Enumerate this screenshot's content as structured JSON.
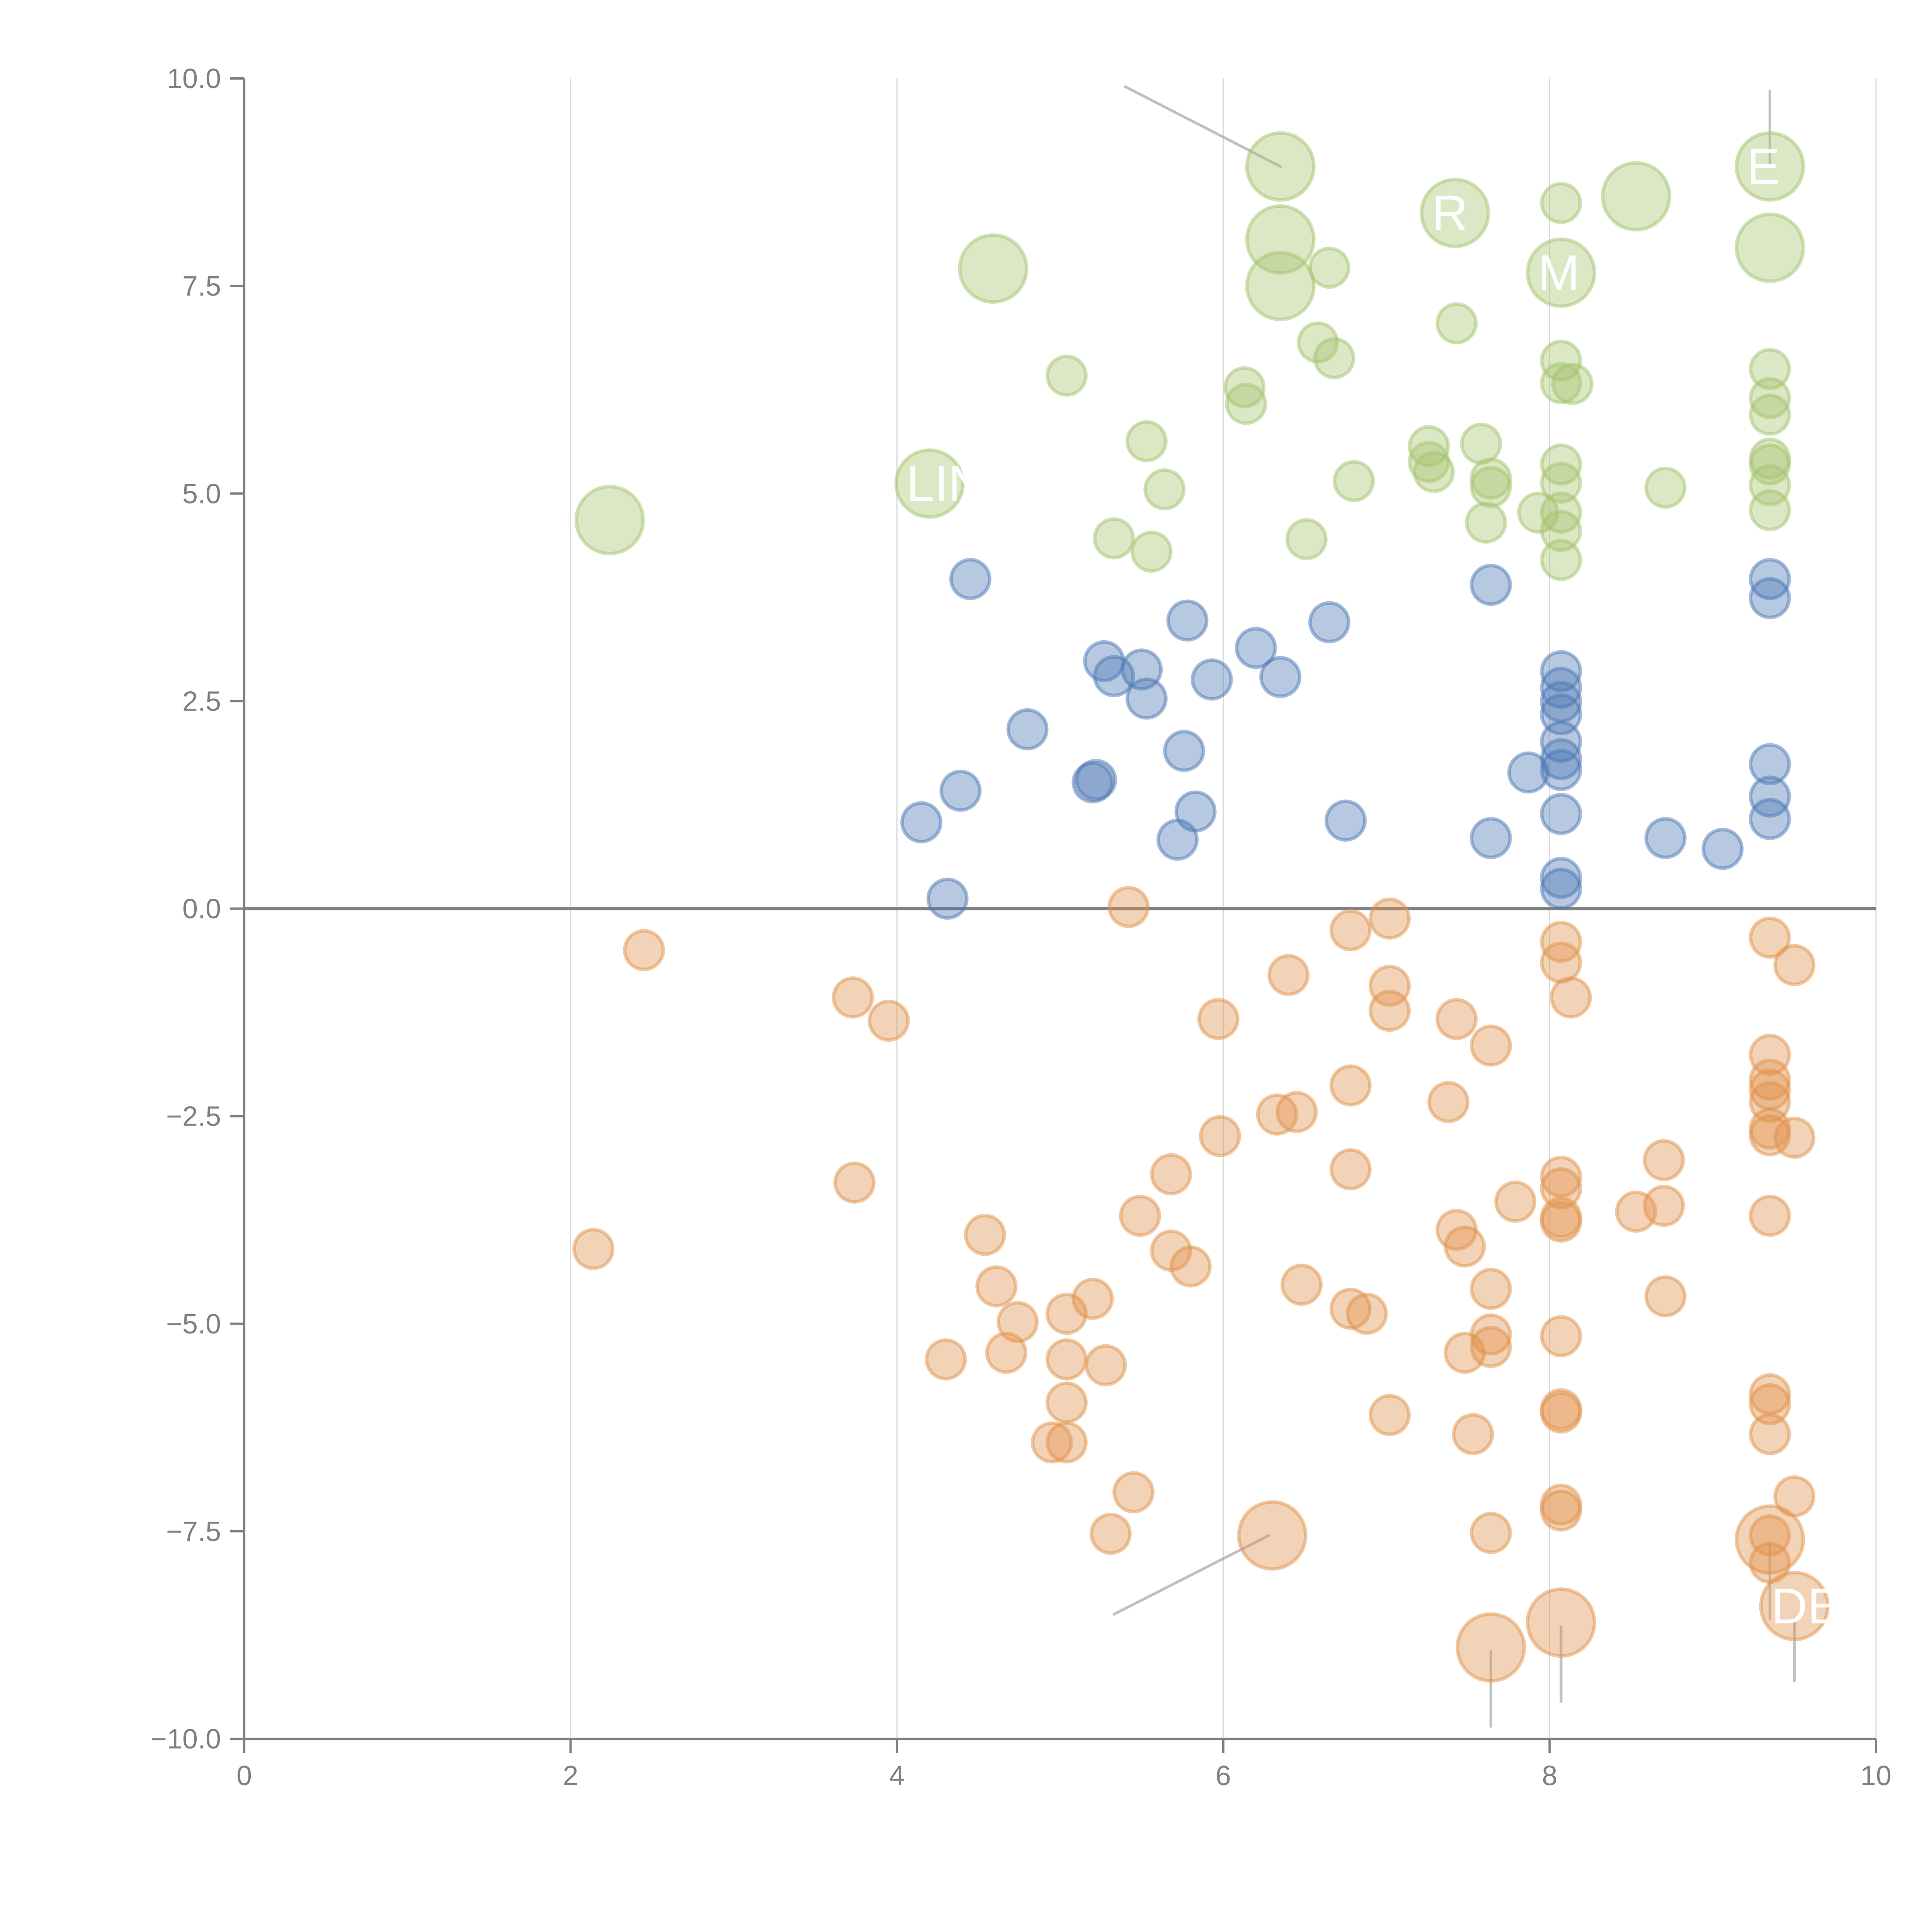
{
  "chart_data": {
    "type": "scatter",
    "title": "",
    "xlabel": "",
    "ylabel": "",
    "xlim": [
      0,
      10
    ],
    "ylim": [
      -10,
      10
    ],
    "grid": "vertical lines at x ticks",
    "legend": "none",
    "x_ticks": [
      "0",
      "2",
      "4",
      "6",
      "8",
      "10"
    ],
    "x_tick_values": [
      0,
      2,
      4,
      6,
      8,
      10
    ],
    "y_ticks": [
      "10.0",
      "7.5",
      "5.0",
      "2.5",
      "0.0",
      "−2.5",
      "−5.0",
      "−7.5",
      "−10.0"
    ],
    "y_tick_values": [
      10,
      7.5,
      5,
      2.5,
      0,
      -2.5,
      -5,
      -7.5,
      -10
    ],
    "zero_line": 0,
    "series": [
      {
        "name": "green",
        "color": "#a4c46e",
        "points": [
          {
            "x": 2.24,
            "y": 4.68,
            "size": 3
          },
          {
            "x": 4.2,
            "y": 5.12,
            "size": 3,
            "label": "LIN"
          },
          {
            "x": 4.59,
            "y": 7.71,
            "size": 3
          },
          {
            "x": 6.35,
            "y": 8.94,
            "size": 3
          },
          {
            "x": 6.35,
            "y": 8.06,
            "size": 3
          },
          {
            "x": 6.35,
            "y": 7.5,
            "size": 3
          },
          {
            "x": 7.42,
            "y": 8.38,
            "size": 3,
            "label": "R"
          },
          {
            "x": 8.07,
            "y": 7.66,
            "size": 3,
            "label": "M"
          },
          {
            "x": 8.53,
            "y": 8.58,
            "size": 3
          },
          {
            "x": 9.35,
            "y": 8.94,
            "size": 3,
            "label": "E"
          },
          {
            "x": 9.35,
            "y": 7.96,
            "size": 3
          },
          {
            "x": 5.04,
            "y": 6.42,
            "size": 1
          },
          {
            "x": 5.53,
            "y": 5.63,
            "size": 1
          },
          {
            "x": 5.64,
            "y": 5.05,
            "size": 1
          },
          {
            "x": 5.33,
            "y": 4.46,
            "size": 1
          },
          {
            "x": 5.56,
            "y": 4.3,
            "size": 1
          },
          {
            "x": 6.13,
            "y": 6.28,
            "size": 1
          },
          {
            "x": 6.14,
            "y": 6.08,
            "size": 1
          },
          {
            "x": 6.58,
            "y": 6.82,
            "size": 1
          },
          {
            "x": 6.65,
            "y": 7.72,
            "size": 1
          },
          {
            "x": 6.68,
            "y": 6.63,
            "size": 1
          },
          {
            "x": 6.51,
            "y": 4.45,
            "size": 1
          },
          {
            "x": 6.8,
            "y": 5.15,
            "size": 1
          },
          {
            "x": 7.26,
            "y": 5.57,
            "size": 1
          },
          {
            "x": 7.26,
            "y": 5.38,
            "size": 1
          },
          {
            "x": 7.29,
            "y": 5.26,
            "size": 1
          },
          {
            "x": 7.43,
            "y": 7.05,
            "size": 1
          },
          {
            "x": 7.58,
            "y": 5.6,
            "size": 1
          },
          {
            "x": 7.64,
            "y": 5.18,
            "size": 1
          },
          {
            "x": 7.64,
            "y": 5.08,
            "size": 1
          },
          {
            "x": 7.61,
            "y": 4.65,
            "size": 1
          },
          {
            "x": 7.93,
            "y": 4.77,
            "size": 1
          },
          {
            "x": 8.07,
            "y": 8.5,
            "size": 1
          },
          {
            "x": 8.07,
            "y": 6.6,
            "size": 1
          },
          {
            "x": 8.07,
            "y": 6.33,
            "size": 1
          },
          {
            "x": 8.14,
            "y": 6.32,
            "size": 1
          },
          {
            "x": 8.07,
            "y": 5.35,
            "size": 1
          },
          {
            "x": 8.07,
            "y": 5.13,
            "size": 1
          },
          {
            "x": 8.07,
            "y": 4.77,
            "size": 1
          },
          {
            "x": 8.07,
            "y": 4.55,
            "size": 1
          },
          {
            "x": 8.07,
            "y": 4.2,
            "size": 1
          },
          {
            "x": 8.71,
            "y": 5.07,
            "size": 1
          },
          {
            "x": 9.35,
            "y": 6.5,
            "size": 1
          },
          {
            "x": 9.35,
            "y": 6.15,
            "size": 1
          },
          {
            "x": 9.35,
            "y": 5.95,
            "size": 1
          },
          {
            "x": 9.35,
            "y": 5.42,
            "size": 1
          },
          {
            "x": 9.35,
            "y": 5.35,
            "size": 1
          },
          {
            "x": 9.35,
            "y": 5.1,
            "size": 1
          },
          {
            "x": 9.35,
            "y": 4.8,
            "size": 1
          }
        ]
      },
      {
        "name": "blue",
        "color": "#4c78b4",
        "points": [
          {
            "x": 4.45,
            "y": 3.97,
            "size": 1
          },
          {
            "x": 5.78,
            "y": 3.47,
            "size": 1
          },
          {
            "x": 6.65,
            "y": 3.45,
            "size": 1
          },
          {
            "x": 7.64,
            "y": 3.9,
            "size": 1
          },
          {
            "x": 5.27,
            "y": 2.98,
            "size": 1
          },
          {
            "x": 5.33,
            "y": 2.8,
            "size": 1
          },
          {
            "x": 5.5,
            "y": 2.88,
            "size": 1
          },
          {
            "x": 5.53,
            "y": 2.53,
            "size": 1
          },
          {
            "x": 5.93,
            "y": 2.76,
            "size": 1
          },
          {
            "x": 6.2,
            "y": 3.14,
            "size": 1
          },
          {
            "x": 6.35,
            "y": 2.79,
            "size": 1
          },
          {
            "x": 4.8,
            "y": 2.16,
            "size": 1
          },
          {
            "x": 5.76,
            "y": 1.9,
            "size": 1
          },
          {
            "x": 5.2,
            "y": 1.52,
            "size": 1
          },
          {
            "x": 5.22,
            "y": 1.55,
            "size": 1
          },
          {
            "x": 4.39,
            "y": 1.42,
            "size": 1
          },
          {
            "x": 4.15,
            "y": 1.04,
            "size": 1
          },
          {
            "x": 5.83,
            "y": 1.17,
            "size": 1
          },
          {
            "x": 5.72,
            "y": 0.83,
            "size": 1
          },
          {
            "x": 6.75,
            "y": 1.06,
            "size": 1
          },
          {
            "x": 4.31,
            "y": 0.12,
            "size": 1
          },
          {
            "x": 7.64,
            "y": 0.85,
            "size": 1
          },
          {
            "x": 7.87,
            "y": 1.64,
            "size": 1
          },
          {
            "x": 8.07,
            "y": 2.86,
            "size": 1
          },
          {
            "x": 8.07,
            "y": 2.66,
            "size": 1
          },
          {
            "x": 8.07,
            "y": 2.49,
            "size": 1
          },
          {
            "x": 8.07,
            "y": 2.34,
            "size": 1
          },
          {
            "x": 8.07,
            "y": 2.01,
            "size": 1
          },
          {
            "x": 8.07,
            "y": 1.8,
            "size": 1
          },
          {
            "x": 8.07,
            "y": 1.67,
            "size": 1
          },
          {
            "x": 8.07,
            "y": 1.14,
            "size": 1
          },
          {
            "x": 8.07,
            "y": 0.37,
            "size": 1
          },
          {
            "x": 8.07,
            "y": 0.24,
            "size": 1
          },
          {
            "x": 8.71,
            "y": 0.85,
            "size": 1
          },
          {
            "x": 9.06,
            "y": 0.72,
            "size": 1
          },
          {
            "x": 9.35,
            "y": 3.97,
            "size": 1
          },
          {
            "x": 9.35,
            "y": 3.74,
            "size": 1
          },
          {
            "x": 9.35,
            "y": 1.74,
            "size": 1
          },
          {
            "x": 9.35,
            "y": 1.35,
            "size": 1
          },
          {
            "x": 9.35,
            "y": 1.08,
            "size": 1
          }
        ]
      },
      {
        "name": "orange",
        "color": "#e0924a",
        "points": [
          {
            "x": 6.3,
            "y": -7.55,
            "size": 3
          },
          {
            "x": 7.64,
            "y": -8.9,
            "size": 3
          },
          {
            "x": 8.07,
            "y": -8.6,
            "size": 3
          },
          {
            "x": 9.35,
            "y": -7.6,
            "size": 3
          },
          {
            "x": 9.5,
            "y": -8.4,
            "size": 3,
            "label": "DE"
          },
          {
            "x": 2.45,
            "y": -0.5,
            "size": 1
          },
          {
            "x": 2.14,
            "y": -4.1,
            "size": 1
          },
          {
            "x": 3.73,
            "y": -1.07,
            "size": 1
          },
          {
            "x": 3.95,
            "y": -1.35,
            "size": 1
          },
          {
            "x": 3.74,
            "y": -3.3,
            "size": 1
          },
          {
            "x": 5.42,
            "y": 0.02,
            "size": 1
          },
          {
            "x": 6.78,
            "y": -0.26,
            "size": 1
          },
          {
            "x": 7.02,
            "y": -0.12,
            "size": 1
          },
          {
            "x": 6.4,
            "y": -0.8,
            "size": 1
          },
          {
            "x": 7.02,
            "y": -0.93,
            "size": 1
          },
          {
            "x": 7.02,
            "y": -1.23,
            "size": 1
          },
          {
            "x": 5.97,
            "y": -1.33,
            "size": 1
          },
          {
            "x": 7.43,
            "y": -1.33,
            "size": 1
          },
          {
            "x": 7.64,
            "y": -1.65,
            "size": 1
          },
          {
            "x": 6.78,
            "y": -2.13,
            "size": 1
          },
          {
            "x": 7.38,
            "y": -2.33,
            "size": 1
          },
          {
            "x": 6.33,
            "y": -2.48,
            "size": 1
          },
          {
            "x": 6.45,
            "y": -2.45,
            "size": 1
          },
          {
            "x": 5.98,
            "y": -2.74,
            "size": 1
          },
          {
            "x": 6.78,
            "y": -3.14,
            "size": 1
          },
          {
            "x": 5.68,
            "y": -3.2,
            "size": 1
          },
          {
            "x": 5.49,
            "y": -3.7,
            "size": 1
          },
          {
            "x": 5.68,
            "y": -4.12,
            "size": 1
          },
          {
            "x": 5.8,
            "y": -4.31,
            "size": 1
          },
          {
            "x": 4.54,
            "y": -3.93,
            "size": 1
          },
          {
            "x": 4.61,
            "y": -4.55,
            "size": 1
          },
          {
            "x": 4.74,
            "y": -4.98,
            "size": 1
          },
          {
            "x": 5.2,
            "y": -4.7,
            "size": 1
          },
          {
            "x": 5.04,
            "y": -4.88,
            "size": 1
          },
          {
            "x": 4.3,
            "y": -5.43,
            "size": 1
          },
          {
            "x": 4.67,
            "y": -5.35,
            "size": 1
          },
          {
            "x": 5.04,
            "y": -5.43,
            "size": 1
          },
          {
            "x": 5.28,
            "y": -5.5,
            "size": 1
          },
          {
            "x": 5.04,
            "y": -5.95,
            "size": 1
          },
          {
            "x": 4.95,
            "y": -6.43,
            "size": 1
          },
          {
            "x": 5.04,
            "y": -6.43,
            "size": 1
          },
          {
            "x": 5.45,
            "y": -7.03,
            "size": 1
          },
          {
            "x": 5.31,
            "y": -7.53,
            "size": 1
          },
          {
            "x": 6.48,
            "y": -4.53,
            "size": 1
          },
          {
            "x": 6.78,
            "y": -4.82,
            "size": 1
          },
          {
            "x": 6.88,
            "y": -4.88,
            "size": 1
          },
          {
            "x": 7.43,
            "y": -3.87,
            "size": 1
          },
          {
            "x": 7.48,
            "y": -4.07,
            "size": 1
          },
          {
            "x": 7.64,
            "y": -4.58,
            "size": 1
          },
          {
            "x": 7.79,
            "y": -3.53,
            "size": 1
          },
          {
            "x": 7.64,
            "y": -5.13,
            "size": 1
          },
          {
            "x": 7.48,
            "y": -5.35,
            "size": 1
          },
          {
            "x": 7.64,
            "y": -5.28,
            "size": 1
          },
          {
            "x": 7.02,
            "y": -6.1,
            "size": 1
          },
          {
            "x": 7.53,
            "y": -6.33,
            "size": 1
          },
          {
            "x": 7.64,
            "y": -7.52,
            "size": 1
          },
          {
            "x": 8.07,
            "y": -0.4,
            "size": 1
          },
          {
            "x": 8.07,
            "y": -0.65,
            "size": 1
          },
          {
            "x": 8.13,
            "y": -1.07,
            "size": 1
          },
          {
            "x": 8.07,
            "y": -3.23,
            "size": 1
          },
          {
            "x": 8.07,
            "y": -3.37,
            "size": 1
          },
          {
            "x": 8.07,
            "y": -3.72,
            "size": 1
          },
          {
            "x": 8.07,
            "y": -3.77,
            "size": 1
          },
          {
            "x": 8.07,
            "y": -5.15,
            "size": 1
          },
          {
            "x": 8.07,
            "y": -6.03,
            "size": 1
          },
          {
            "x": 8.07,
            "y": -6.07,
            "size": 1
          },
          {
            "x": 8.07,
            "y": -7.18,
            "size": 1
          },
          {
            "x": 8.07,
            "y": -7.25,
            "size": 1
          },
          {
            "x": 8.53,
            "y": -3.65,
            "size": 1
          },
          {
            "x": 8.7,
            "y": -3.03,
            "size": 1
          },
          {
            "x": 8.7,
            "y": -3.58,
            "size": 1
          },
          {
            "x": 8.71,
            "y": -4.67,
            "size": 1
          },
          {
            "x": 9.35,
            "y": -0.35,
            "size": 1
          },
          {
            "x": 9.5,
            "y": -0.68,
            "size": 1
          },
          {
            "x": 9.35,
            "y": -1.76,
            "size": 1
          },
          {
            "x": 9.35,
            "y": -2.06,
            "size": 1
          },
          {
            "x": 9.35,
            "y": -2.18,
            "size": 1
          },
          {
            "x": 9.35,
            "y": -2.33,
            "size": 1
          },
          {
            "x": 9.35,
            "y": -2.65,
            "size": 1
          },
          {
            "x": 9.35,
            "y": -2.73,
            "size": 1
          },
          {
            "x": 9.5,
            "y": -2.76,
            "size": 1
          },
          {
            "x": 9.35,
            "y": -3.7,
            "size": 1
          },
          {
            "x": 9.35,
            "y": -5.85,
            "size": 1
          },
          {
            "x": 9.35,
            "y": -5.97,
            "size": 1
          },
          {
            "x": 9.35,
            "y": -6.33,
            "size": 1
          },
          {
            "x": 9.5,
            "y": -7.08,
            "size": 1
          },
          {
            "x": 9.35,
            "y": -7.55,
            "size": 1
          },
          {
            "x": 9.35,
            "y": -7.88,
            "size": 1
          }
        ]
      }
    ],
    "annotations": [
      {
        "text": "LIN",
        "x": 4.2,
        "y": 5.12
      },
      {
        "text": "R",
        "x": 7.42,
        "y": 8.38
      },
      {
        "text": "M",
        "x": 8.07,
        "y": 7.66
      },
      {
        "text": "E",
        "x": 9.35,
        "y": 8.94
      },
      {
        "text": "DE",
        "x": 9.5,
        "y": -8.4
      }
    ],
    "leader_lines": [
      {
        "from": [
          5.4,
          9.9
        ],
        "to": [
          6.35,
          8.94
        ]
      },
      {
        "from": [
          9.35,
          9.85
        ],
        "to": [
          9.35,
          8.94
        ]
      },
      {
        "from": [
          5.33,
          -8.5
        ],
        "to": [
          6.28,
          -7.55
        ]
      },
      {
        "from": [
          7.64,
          -9.85
        ],
        "to": [
          7.64,
          -8.95
        ]
      },
      {
        "from": [
          8.07,
          -9.55
        ],
        "to": [
          8.07,
          -8.65
        ]
      },
      {
        "from": [
          9.35,
          -7.65
        ],
        "to": [
          9.35,
          -8.55
        ]
      },
      {
        "from": [
          9.5,
          -8.55
        ],
        "to": [
          9.5,
          -9.3
        ]
      }
    ]
  }
}
